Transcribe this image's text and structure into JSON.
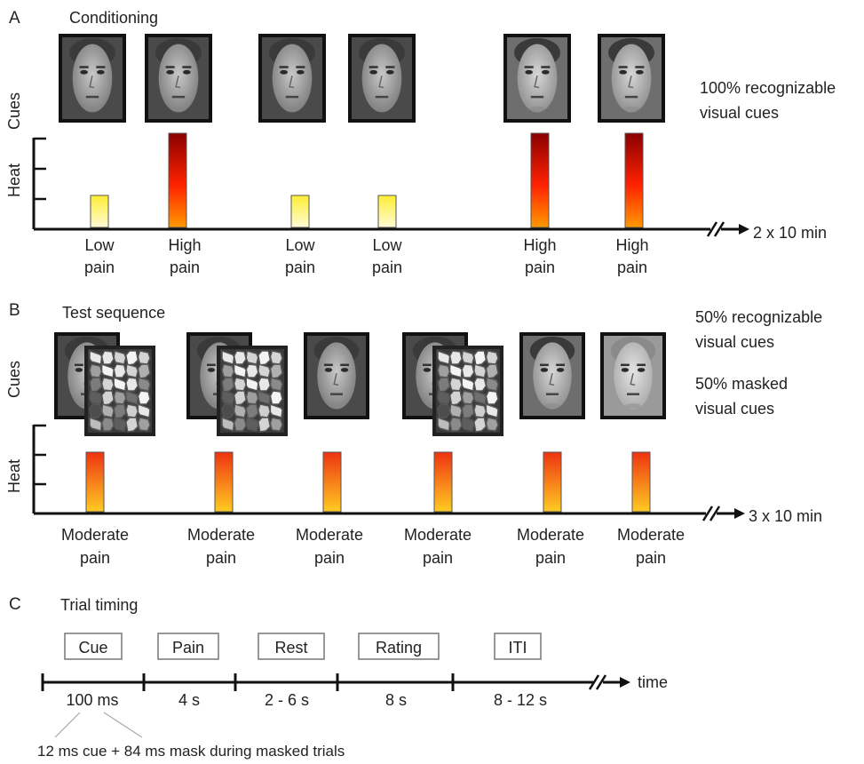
{
  "panel_a": {
    "letter": "A",
    "title": "Conditioning",
    "cues_label": "Cues",
    "heat_label": "Heat",
    "note_line1": "100% recognizable",
    "note_line2": "visual cues",
    "duration": "2 x 10 min",
    "trials": [
      {
        "pain_line1": "Low",
        "pain_line2": "pain",
        "level": "low",
        "face": "A"
      },
      {
        "pain_line1": "High",
        "pain_line2": "pain",
        "level": "high",
        "face": "A"
      },
      {
        "pain_line1": "Low",
        "pain_line2": "pain",
        "level": "low",
        "face": "A"
      },
      {
        "pain_line1": "Low",
        "pain_line2": "pain",
        "level": "low",
        "face": "A"
      },
      {
        "pain_line1": "High",
        "pain_line2": "pain",
        "level": "high",
        "face": "B"
      },
      {
        "pain_line1": "High",
        "pain_line2": "pain",
        "level": "high",
        "face": "B"
      }
    ]
  },
  "panel_b": {
    "letter": "B",
    "title": "Test sequence",
    "cues_label": "Cues",
    "heat_label": "Heat",
    "note1_line1": "50% recognizable",
    "note1_line2": "visual cues",
    "note2_line1": "50% masked",
    "note2_line2": "visual cues",
    "duration": "3 x 10 min",
    "trials": [
      {
        "pain_line1": "Moderate",
        "pain_line2": "pain",
        "masked": true,
        "face": "A"
      },
      {
        "pain_line1": "Moderate",
        "pain_line2": "pain",
        "masked": true,
        "face": "A"
      },
      {
        "pain_line1": "Moderate",
        "pain_line2": "pain",
        "masked": false,
        "face": "A"
      },
      {
        "pain_line1": "Moderate",
        "pain_line2": "pain",
        "masked": true,
        "face": "A"
      },
      {
        "pain_line1": "Moderate",
        "pain_line2": "pain",
        "masked": false,
        "face": "B"
      },
      {
        "pain_line1": "Moderate",
        "pain_line2": "pain",
        "masked": false,
        "face": "C"
      }
    ]
  },
  "panel_c": {
    "letter": "C",
    "title": "Trial timing",
    "axis_label": "time",
    "phases": [
      {
        "label": "Cue",
        "duration": "100 ms"
      },
      {
        "label": "Pain",
        "duration": "4 s"
      },
      {
        "label": "Rest",
        "duration": "2 - 6 s"
      },
      {
        "label": "Rating",
        "duration": "8 s"
      },
      {
        "label": "ITI",
        "duration": "8 - 12 s"
      }
    ],
    "footnote": "12 ms cue + 84 ms mask during masked trials"
  },
  "colors": {
    "low_heat_top": "#ffee33",
    "low_heat_bottom": "#fffbd6",
    "high_heat_top": "#8a0000",
    "high_heat_mid": "#ff2200",
    "high_heat_bottom": "#ff9900",
    "mod_heat_top": "#ee3311",
    "mod_heat_bottom": "#ffcc22",
    "axis": "#111111"
  }
}
